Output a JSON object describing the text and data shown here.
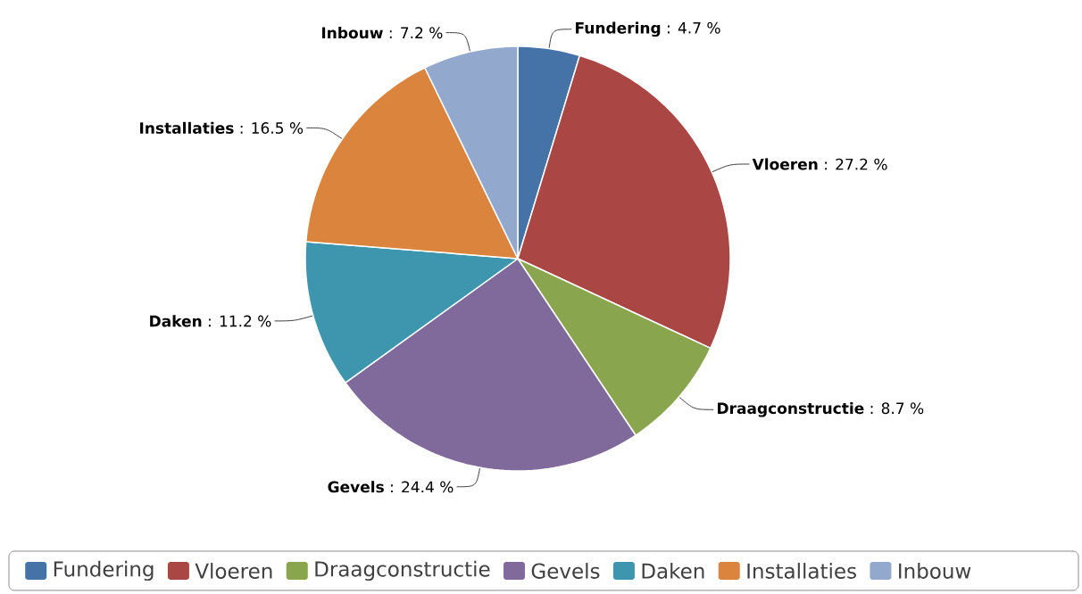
{
  "chart_data": {
    "type": "pie",
    "categories": [
      "Fundering",
      "Vloeren",
      "Draagconstructie",
      "Gevels",
      "Daken",
      "Installaties",
      "Inbouw"
    ],
    "values": [
      4.7,
      27.2,
      8.7,
      24.4,
      11.2,
      16.5,
      7.2
    ],
    "value_labels": [
      "**Fundering** : 4.7 %",
      "**Vloeren** : 27.2 %",
      "**Draagconstructie** : 8.7 %",
      "**Gevels** : 24.4 %",
      "**Daken** : 11.2 %",
      "**Installaties** : 16.5 %",
      "**Inbouw** : 7.2 %"
    ],
    "colors": [
      "#4572a7",
      "#aa4643",
      "#89a54e",
      "#80699b",
      "#3d96ae",
      "#db843d",
      "#92a8cd"
    ],
    "legend": "bottom"
  }
}
